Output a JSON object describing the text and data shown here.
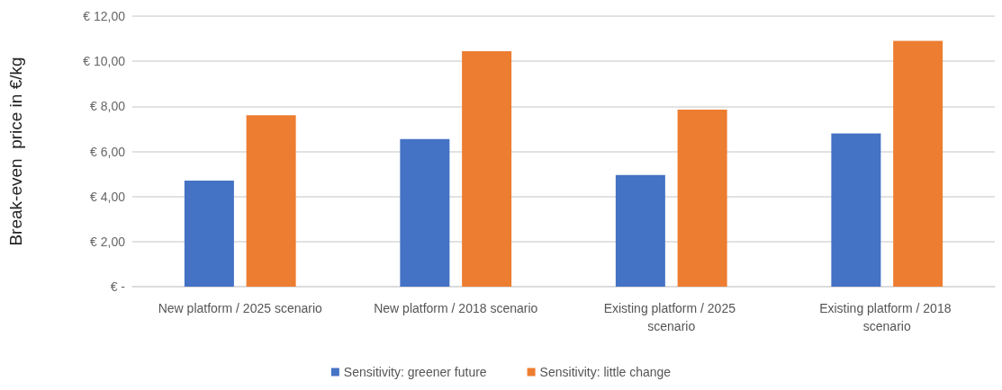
{
  "chart_data": {
    "type": "bar",
    "ylabel": "Break-even  price in €/kg",
    "categories": [
      "New platform / 2025 scenario",
      "New platform / 2018 scenario",
      "Existing platform / 2025 scenario",
      "Existing platform / 2018 scenario"
    ],
    "series": [
      {
        "name": "Sensitivity: greener future",
        "color": "#4472c4",
        "values": [
          4.7,
          6.55,
          4.95,
          6.8
        ]
      },
      {
        "name": "Sensitivity: little change",
        "color": "#ed7d31",
        "values": [
          7.6,
          10.45,
          7.85,
          10.9
        ]
      }
    ],
    "ylim": [
      0,
      12
    ],
    "yticks": [
      {
        "value": 0,
        "label": "€ -"
      },
      {
        "value": 2,
        "label": "€ 2,00"
      },
      {
        "value": 4,
        "label": "€ 4,00"
      },
      {
        "value": 6,
        "label": "€ 6,00"
      },
      {
        "value": 8,
        "label": "€ 8,00"
      },
      {
        "value": 10,
        "label": "€ 10,00"
      },
      {
        "value": 12,
        "label": "€ 12,00"
      }
    ],
    "grid": true,
    "legend": "bottom"
  }
}
